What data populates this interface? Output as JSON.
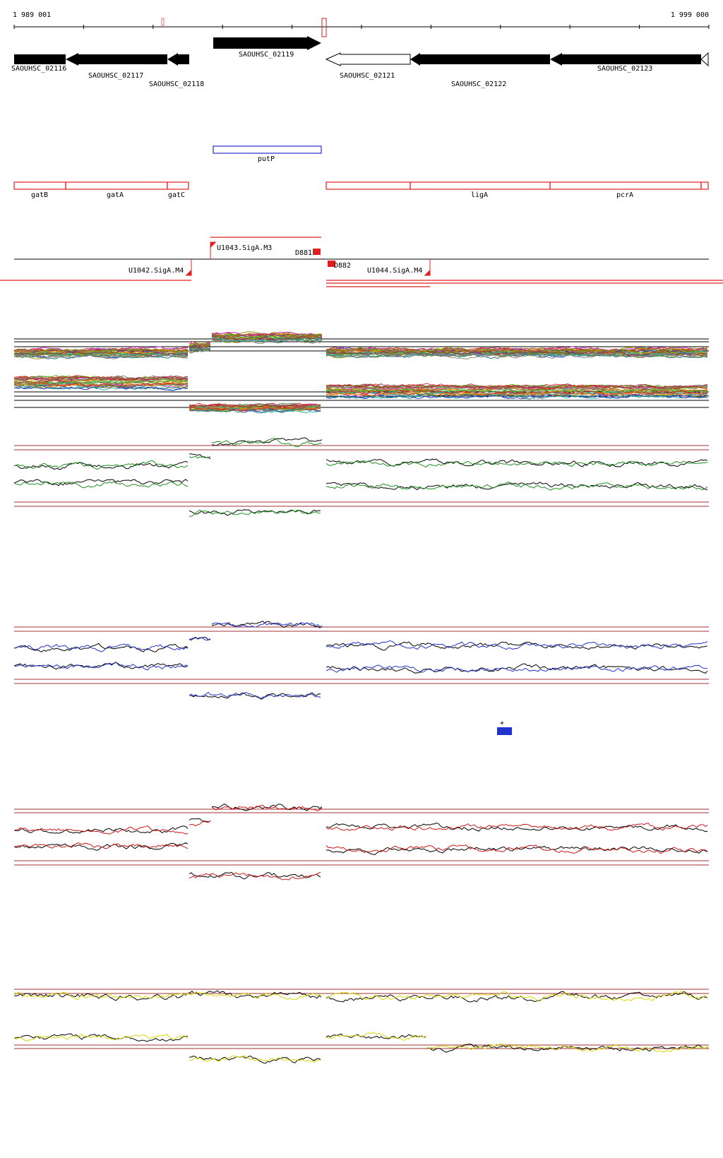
{
  "ruler": {
    "start_label": "1 989 001",
    "end_label": "1 999 000"
  },
  "colors": {
    "gene": "#000000",
    "operon": "#e02020",
    "operon_alt": "#2a2ad0",
    "sample_green": "#1f8f1f",
    "sample_blue": "#2233cc",
    "sample_red": "#cc1515",
    "sample_yellow": "#d8d800",
    "guide": "#a03030"
  },
  "genes": [
    {
      "label": "SAOUHSC_02116"
    },
    {
      "label": "SAOUHSC_02117"
    },
    {
      "label": "SAOUHSC_02118"
    },
    {
      "label": "SAOUHSC_02119"
    },
    {
      "label": "SAOUHSC_02121"
    },
    {
      "label": "SAOUHSC_02122"
    },
    {
      "label": "SAOUHSC_02123"
    }
  ],
  "annotations": [
    {
      "label": "putP"
    },
    {
      "label": "gatB"
    },
    {
      "label": "gatA"
    },
    {
      "label": "gatC"
    },
    {
      "label": "ligA"
    },
    {
      "label": "pcrA"
    }
  ],
  "elements": [
    {
      "label": "U1043.SigA.M3"
    },
    {
      "label": "D881"
    },
    {
      "label": "U1042.SigA.M4"
    },
    {
      "label": "D882"
    },
    {
      "label": "U1044.SigA.M4"
    }
  ],
  "marker": {
    "label": "+"
  }
}
